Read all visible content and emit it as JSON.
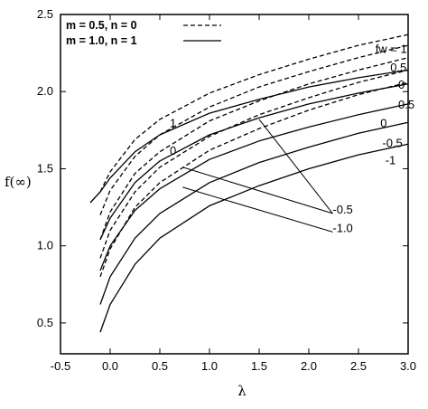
{
  "chart_data": {
    "type": "line",
    "xlabel": "λ",
    "ylabel": "f(∞)",
    "xlim": [
      -0.5,
      3.0
    ],
    "ylim": [
      0.3,
      2.5
    ],
    "grid": false,
    "legend_position": "top-left",
    "xticks": [
      "-0.5",
      "0.0",
      "0.5",
      "1.0",
      "1.5",
      "2.0",
      "2.5",
      "3.0"
    ],
    "yticks": [
      "0.5",
      "1.0",
      "1.5",
      "2.0",
      "2.5"
    ],
    "legend": [
      {
        "label": "m = 0.5, n = 0",
        "style": "dashed"
      },
      {
        "label": "m = 1.0, n = 1",
        "style": "solid"
      }
    ],
    "series": [
      {
        "style": "dashed",
        "fw": 1,
        "x": [
          -0.1,
          0.0,
          0.25,
          0.5,
          1.0,
          1.5,
          2.0,
          2.5,
          3.0
        ],
        "y": [
          1.35,
          1.48,
          1.69,
          1.82,
          1.99,
          2.11,
          2.21,
          2.3,
          2.37
        ]
      },
      {
        "style": "dashed",
        "fw": 0.5,
        "x": [
          -0.1,
          0.0,
          0.25,
          0.5,
          1.0,
          1.5,
          2.0,
          2.5,
          3.0
        ],
        "y": [
          1.2,
          1.36,
          1.58,
          1.72,
          1.9,
          2.03,
          2.13,
          2.22,
          2.3
        ]
      },
      {
        "style": "dashed",
        "fw": 0,
        "x": [
          -0.1,
          0.0,
          0.25,
          0.5,
          1.0,
          1.5,
          2.0,
          2.5,
          3.0
        ],
        "y": [
          1.04,
          1.22,
          1.47,
          1.61,
          1.81,
          1.94,
          2.05,
          2.14,
          2.22
        ]
      },
      {
        "style": "dashed",
        "fw": -0.5,
        "x": [
          -0.1,
          0.0,
          0.25,
          0.5,
          1.0,
          1.5,
          2.0,
          2.5,
          3.0
        ],
        "y": [
          0.92,
          1.1,
          1.35,
          1.51,
          1.71,
          1.85,
          1.96,
          2.06,
          2.14
        ]
      },
      {
        "style": "dashed",
        "fw": -1,
        "x": [
          -0.1,
          0.0,
          0.25,
          0.5,
          1.0,
          1.5,
          2.0,
          2.5,
          3.0
        ],
        "y": [
          0.8,
          0.98,
          1.25,
          1.41,
          1.62,
          1.76,
          1.88,
          1.98,
          2.06
        ]
      },
      {
        "style": "solid",
        "fw": 1,
        "x": [
          -0.2,
          -0.1,
          0.0,
          0.25,
          0.5,
          1.0,
          1.5,
          2.0,
          2.5,
          3.0
        ],
        "y": [
          1.28,
          1.35,
          1.44,
          1.61,
          1.72,
          1.86,
          1.95,
          2.03,
          2.09,
          2.14
        ]
      },
      {
        "style": "solid",
        "fw": 0.5,
        "x": [
          -0.1,
          0.0,
          0.25,
          0.5,
          1.0,
          1.5,
          2.0,
          2.5,
          3.0
        ],
        "y": [
          1.04,
          1.18,
          1.41,
          1.55,
          1.72,
          1.83,
          1.92,
          1.99,
          2.05
        ]
      },
      {
        "style": "solid",
        "fw": 0,
        "x": [
          -0.1,
          0.0,
          0.25,
          0.5,
          1.0,
          1.5,
          2.0,
          2.5,
          3.0
        ],
        "y": [
          0.84,
          1.0,
          1.23,
          1.37,
          1.56,
          1.68,
          1.77,
          1.85,
          1.92
        ]
      },
      {
        "style": "solid",
        "fw": -0.5,
        "x": [
          -0.1,
          0.0,
          0.25,
          0.5,
          1.0,
          1.5,
          2.0,
          2.5,
          3.0
        ],
        "y": [
          0.62,
          0.8,
          1.05,
          1.21,
          1.41,
          1.54,
          1.64,
          1.73,
          1.8
        ]
      },
      {
        "style": "solid",
        "fw": -1,
        "x": [
          -0.1,
          0.0,
          0.25,
          0.5,
          1.0,
          1.5,
          2.0,
          2.5,
          3.0
        ],
        "y": [
          0.44,
          0.62,
          0.88,
          1.05,
          1.26,
          1.39,
          1.5,
          1.59,
          1.66
        ]
      }
    ],
    "annotations": [
      {
        "text": "fw = 1",
        "x": 2.67,
        "y": 2.25
      },
      {
        "text": "0.5",
        "x": 2.82,
        "y": 2.13
      },
      {
        "text": "0",
        "x": 2.9,
        "y": 2.02
      },
      {
        "text": "0.5",
        "x": 2.9,
        "y": 1.89
      },
      {
        "text": "0",
        "x": 2.72,
        "y": 1.77
      },
      {
        "text": "-0.5",
        "x": 2.74,
        "y": 1.64
      },
      {
        "text": "-1",
        "x": 2.77,
        "y": 1.53
      },
      {
        "text": "1",
        "x": 0.6,
        "y": 1.77
      },
      {
        "text": "0",
        "x": 0.6,
        "y": 1.59
      },
      {
        "text": "-0.5",
        "x": 2.24,
        "y": 1.21
      },
      {
        "text": "-1.0",
        "x": 2.24,
        "y": 1.09
      }
    ],
    "leaders": [
      {
        "from": [
          1.5,
          1.82
        ],
        "to": [
          2.24,
          1.21
        ]
      },
      {
        "from": [
          0.73,
          1.51
        ],
        "to": [
          2.24,
          1.21
        ]
      },
      {
        "from": [
          0.73,
          1.38
        ],
        "to": [
          2.24,
          1.09
        ]
      }
    ]
  }
}
